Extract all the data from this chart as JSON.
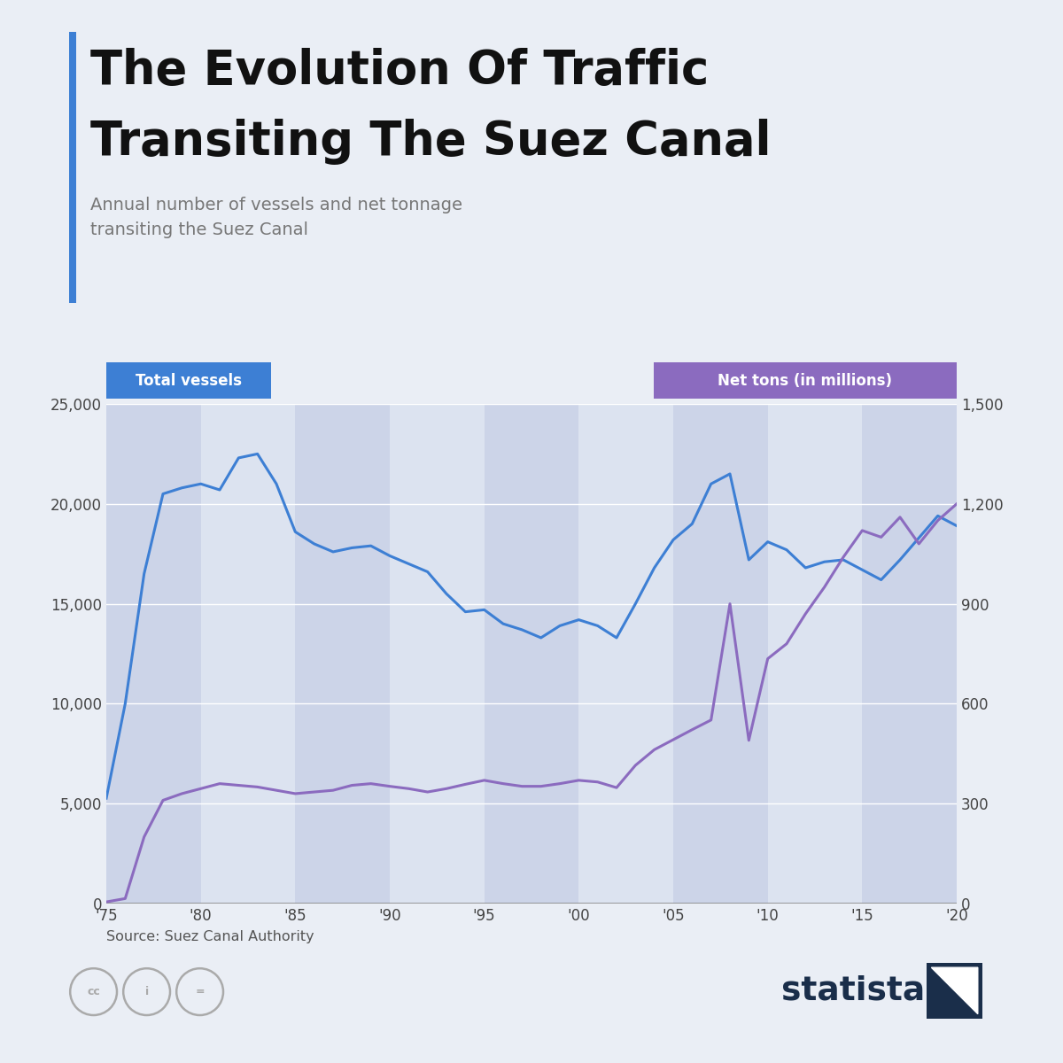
{
  "title_line1": "The Evolution Of Traffic",
  "title_line2": "Transiting The Suez Canal",
  "subtitle": "Annual number of vessels and net tonnage\ntransiting the Suez Canal",
  "source": "Source: Suez Canal Authority",
  "label_left": "Total vessels",
  "label_right": "Net tons (in millions)",
  "bg_color": "#eaeef5",
  "plot_bg_color": "#dce3f0",
  "stripe_dark": "#ccd4e8",
  "stripe_light": "#dce3f0",
  "blue_color": "#3d7fd4",
  "purple_color": "#8b6bbf",
  "title_bar_color": "#3d7fd4",
  "label_left_bg": "#3d7fd4",
  "label_right_bg": "#8b6bbf",
  "years": [
    1975,
    1976,
    1977,
    1978,
    1979,
    1980,
    1981,
    1982,
    1983,
    1984,
    1985,
    1986,
    1987,
    1988,
    1989,
    1990,
    1991,
    1992,
    1993,
    1994,
    1995,
    1996,
    1997,
    1998,
    1999,
    2000,
    2001,
    2002,
    2003,
    2004,
    2005,
    2006,
    2007,
    2008,
    2009,
    2010,
    2011,
    2012,
    2013,
    2014,
    2015,
    2016,
    2017,
    2018,
    2019,
    2020
  ],
  "vessels": [
    5270,
    10000,
    16500,
    20500,
    20800,
    21000,
    20700,
    22300,
    22500,
    21000,
    18600,
    18000,
    17600,
    17800,
    17900,
    17400,
    17000,
    16600,
    15500,
    14600,
    14700,
    14000,
    13700,
    13300,
    13900,
    14200,
    13900,
    13300,
    15000,
    16800,
    18200,
    19000,
    21000,
    21500,
    17200,
    18100,
    17700,
    16800,
    17100,
    17200,
    16700,
    16200,
    17200,
    18300,
    19400,
    18900
  ],
  "net_tons_millions": [
    5,
    15,
    200,
    310,
    330,
    345,
    360,
    355,
    350,
    340,
    330,
    335,
    340,
    355,
    360,
    352,
    345,
    335,
    345,
    358,
    370,
    360,
    352,
    352,
    360,
    370,
    365,
    348,
    415,
    462,
    492,
    522,
    551,
    900,
    490,
    735,
    780,
    870,
    950,
    1040,
    1120,
    1100,
    1160,
    1080,
    1150,
    1200
  ],
  "ylim_left": [
    0,
    25000
  ],
  "ylim_right": [
    0,
    1500
  ],
  "yticks_left": [
    0,
    5000,
    10000,
    15000,
    20000,
    25000
  ],
  "yticks_right": [
    0,
    300,
    600,
    900,
    1200,
    1500
  ],
  "xtick_labels": [
    "'75",
    "'80",
    "'85",
    "'90",
    "'95",
    "'00",
    "'05",
    "'10",
    "'15",
    "'20"
  ],
  "xtick_years": [
    1975,
    1980,
    1985,
    1990,
    1995,
    2000,
    2005,
    2010,
    2015,
    2020
  ],
  "grid_color": "#ffffff",
  "tick_color": "#444444",
  "source_color": "#555555",
  "statista_color": "#1a2e4a"
}
